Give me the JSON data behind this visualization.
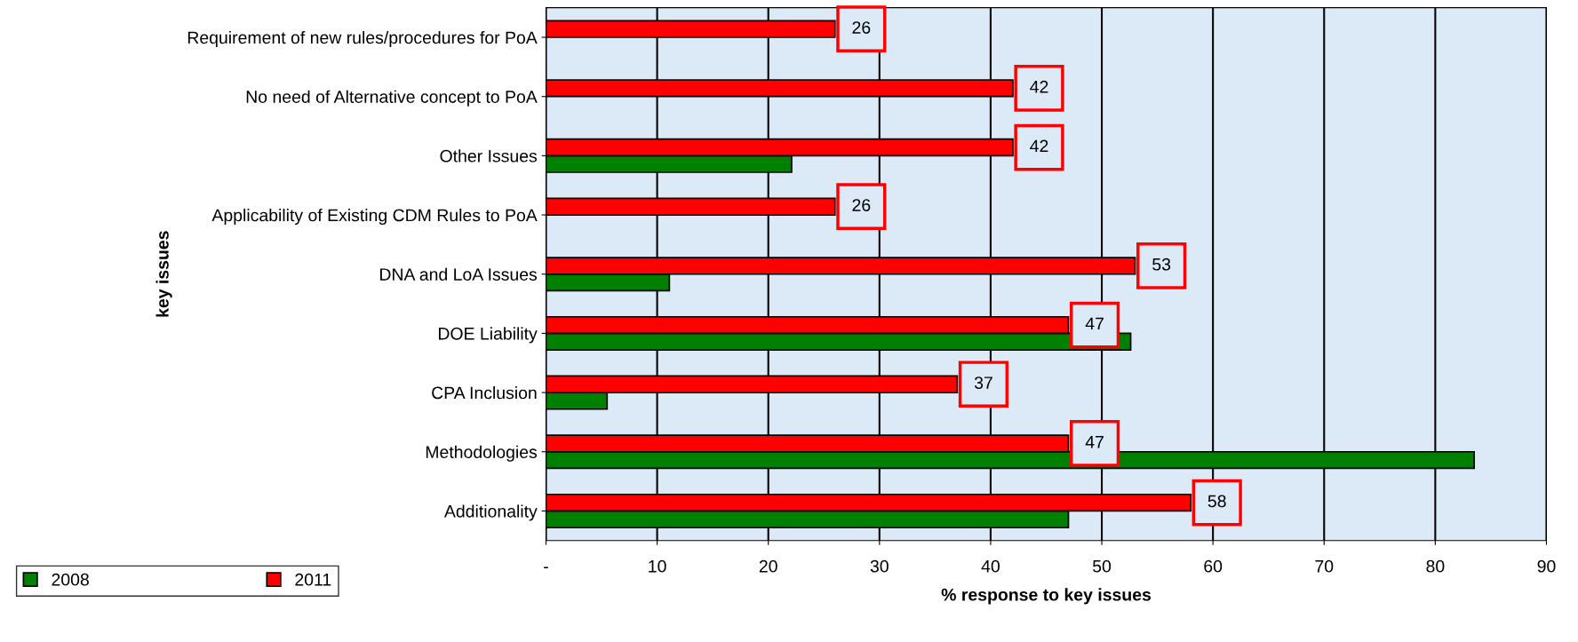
{
  "chart_data": {
    "type": "bar",
    "orientation": "horizontal",
    "xlabel": "% response to key issues",
    "ylabel": "key issues",
    "categories": [
      "Requirement of new rules/procedures for PoA",
      "No need of Alternative concept to PoA",
      "Other Issues",
      "Applicability of Existing CDM Rules to PoA",
      "DNA and LoA Issues",
      "DOE Liability",
      "CPA Inclusion",
      "Methodologies",
      "Additionality"
    ],
    "series": [
      {
        "name": "2008",
        "color": "#008000",
        "values": [
          null,
          null,
          22.1,
          null,
          11.1,
          52.6,
          5.5,
          83.5,
          47.0
        ]
      },
      {
        "name": "2011",
        "color": "#ff0000",
        "values": [
          26,
          42,
          42,
          26,
          53,
          47,
          37,
          47,
          58
        ],
        "value_labels": [
          "26",
          "42",
          "42",
          "26",
          "53",
          "47",
          "37",
          "47",
          "58"
        ]
      }
    ],
    "xlim": [
      0,
      90
    ],
    "xticks": [
      {
        "value": 0,
        "label": "-"
      },
      10,
      20,
      30,
      40,
      50,
      60,
      70,
      80,
      90
    ],
    "grid": "x",
    "legend": "bottom left"
  }
}
